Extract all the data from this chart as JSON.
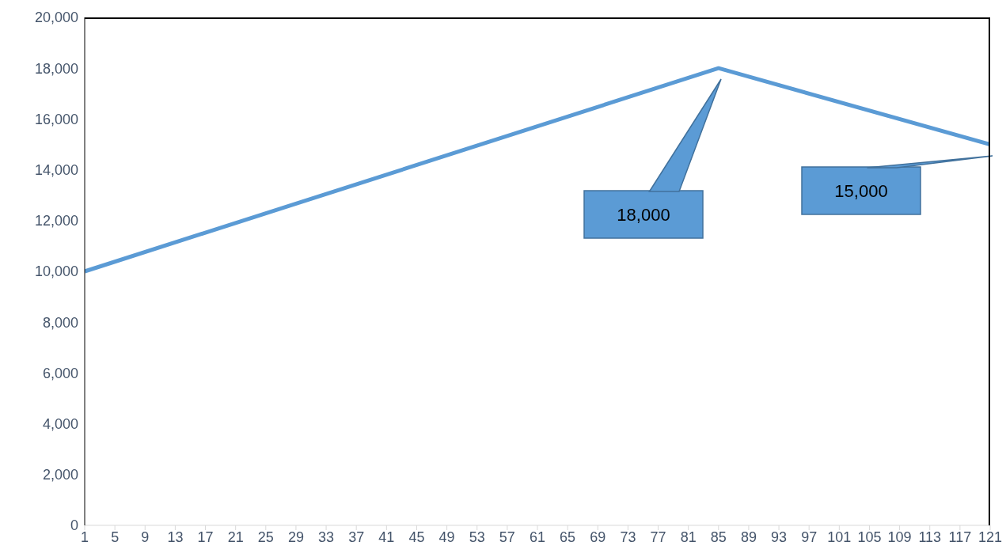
{
  "chart_data": {
    "type": "line",
    "x": [
      1,
      85,
      121
    ],
    "series": [
      {
        "color": "#5b9bd5",
        "values": [
          10000,
          18000,
          15000
        ]
      }
    ],
    "xlim": [
      1,
      121
    ],
    "xticks": [
      1,
      5,
      9,
      13,
      17,
      21,
      25,
      29,
      33,
      37,
      41,
      45,
      49,
      53,
      57,
      61,
      65,
      69,
      73,
      77,
      81,
      85,
      89,
      93,
      97,
      101,
      105,
      109,
      113,
      117,
      121
    ],
    "ylim": [
      0,
      20000
    ],
    "yticks": [
      0,
      {
        "value": 2000,
        "label": "2,000"
      },
      {
        "value": 4000,
        "label": "4,000"
      },
      {
        "value": 6000,
        "label": "6,000"
      },
      {
        "value": 8000,
        "label": "8,000"
      },
      {
        "value": 10000,
        "label": "10,000"
      },
      {
        "value": 12000,
        "label": "12,000"
      },
      {
        "value": 14000,
        "label": "14,000"
      },
      {
        "value": 16000,
        "label": "16,000"
      },
      {
        "value": 18000,
        "label": "18,000"
      },
      {
        "value": 20000,
        "label": "20,000"
      }
    ],
    "grid": false,
    "legend": false,
    "marker": "none",
    "line_style": "solid",
    "annotations": [
      "18,000",
      "15,000"
    ]
  }
}
